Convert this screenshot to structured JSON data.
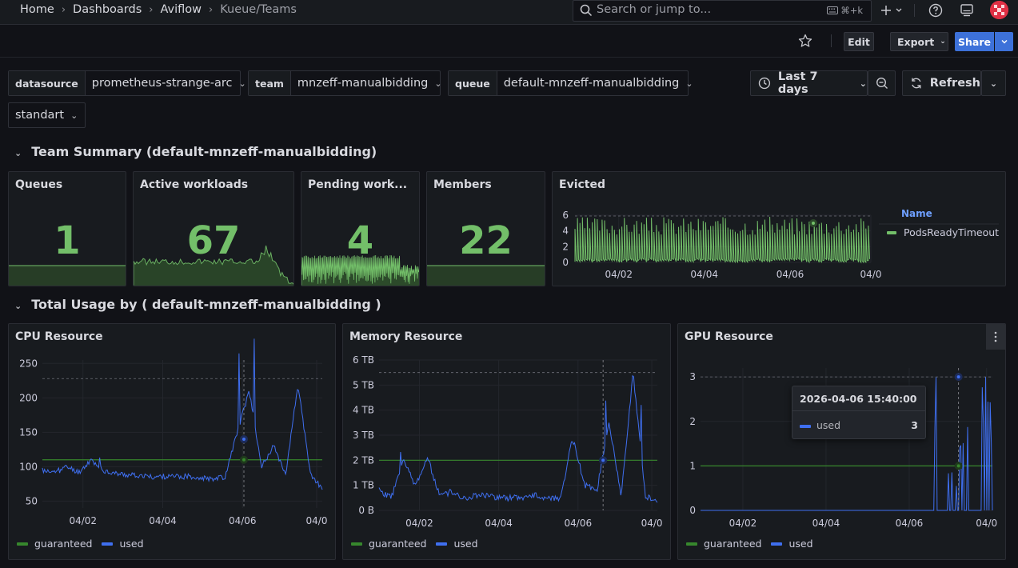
{
  "breadcrumbs": [
    "Home",
    "Dashboards",
    "Aviflow",
    "Kueue/Teams"
  ],
  "search": {
    "placeholder": "Search or jump to...",
    "shortcut": "⌘+k"
  },
  "toolbar": {
    "edit": "Edit",
    "export": "Export",
    "share": "Share"
  },
  "variables": [
    {
      "label": "datasource",
      "value": "prometheus-strange-arc"
    },
    {
      "label": "team",
      "value": "mnzeff-manualbidding"
    },
    {
      "label": "queue",
      "value": "default-mnzeff-manualbidding"
    },
    {
      "label": "",
      "value": "standart"
    }
  ],
  "time_range": {
    "label": "Last 7 days",
    "refresh": "Refresh"
  },
  "rows": {
    "summary": "Team Summary (default-mnzeff-manualbidding)",
    "usage": "Total Usage by ( default-mnzeff-manualbidding )"
  },
  "stats": {
    "queues": {
      "title": "Queues",
      "value": "1"
    },
    "active": {
      "title": "Active workloads",
      "value": "67"
    },
    "pending": {
      "title": "Pending work...",
      "value": "4"
    },
    "members": {
      "title": "Members",
      "value": "22"
    }
  },
  "evicted": {
    "title": "Evicted",
    "legend_header": "Name",
    "legend_item": "PodsReadyTimeout"
  },
  "tooltip": {
    "time": "2026-04-06 15:40:00",
    "series": "used",
    "value": "3"
  },
  "colors": {
    "green": "#73bf69",
    "guaranteed": "#37872d",
    "used": "#3f6ff0",
    "accent": "#3d71d9"
  },
  "chart_data": [
    {
      "type": "line",
      "title": "Evicted",
      "y_ticks": [
        "0",
        "2",
        "4",
        "6"
      ],
      "ylim": [
        0,
        6
      ],
      "x_ticks": [
        "04/02",
        "04/04",
        "04/06",
        "04/0"
      ],
      "series": [
        {
          "name": "PodsReadyTimeout",
          "values": [
            5,
            0,
            4,
            1,
            5,
            0,
            3,
            1,
            5,
            0,
            4,
            1,
            5,
            0,
            4,
            1,
            5,
            0
          ]
        }
      ]
    },
    {
      "type": "line",
      "title": "CPU Resource",
      "y_ticks": [
        "50",
        "100",
        "150",
        "200",
        "250"
      ],
      "ylim": [
        40,
        255
      ],
      "x_ticks": [
        "04/02",
        "04/04",
        "04/06",
        "04/0"
      ],
      "series": [
        {
          "name": "guaranteed",
          "values": [
            110,
            110
          ]
        },
        {
          "name": "used",
          "values": [
            95,
            90,
            100,
            92,
            110,
            95,
            90,
            88,
            87,
            85,
            86,
            85,
            86,
            84,
            83,
            85,
            150,
            210,
            100,
            130,
            90,
            220,
            90,
            68
          ]
        }
      ]
    },
    {
      "type": "line",
      "title": "Memory Resource",
      "y_ticks": [
        "0 B",
        "1 TB",
        "2 TB",
        "3 TB",
        "4 TB",
        "5 TB",
        "6 TB"
      ],
      "ylim": [
        0,
        6
      ],
      "x_ticks": [
        "04/02",
        "04/04",
        "04/06",
        "04/0"
      ],
      "series": [
        {
          "name": "guaranteed",
          "values": [
            2,
            2
          ]
        },
        {
          "name": "used",
          "values": [
            0.8,
            0.5,
            2.0,
            1.0,
            2.1,
            0.6,
            0.7,
            0.5,
            0.6,
            0.6,
            0.5,
            0.5,
            0.5,
            0.6,
            0.5,
            0.5,
            2.9,
            1.0,
            0.8,
            3.5,
            0.6,
            5.5,
            0.6,
            0.3
          ]
        }
      ]
    },
    {
      "type": "line",
      "title": "GPU Resource",
      "y_ticks": [
        "0",
        "1",
        "2",
        "3"
      ],
      "ylim": [
        0,
        3.2
      ],
      "x_ticks": [
        "04/02",
        "04/04",
        "04/06",
        "04/0"
      ],
      "series": [
        {
          "name": "guaranteed",
          "values": [
            1,
            1
          ]
        },
        {
          "name": "used",
          "values": [
            0,
            0,
            0,
            0,
            0,
            0,
            0,
            0,
            0,
            0,
            0,
            0,
            0,
            0,
            0,
            0,
            0,
            3,
            0,
            2,
            1,
            2,
            0,
            3
          ]
        }
      ]
    }
  ]
}
